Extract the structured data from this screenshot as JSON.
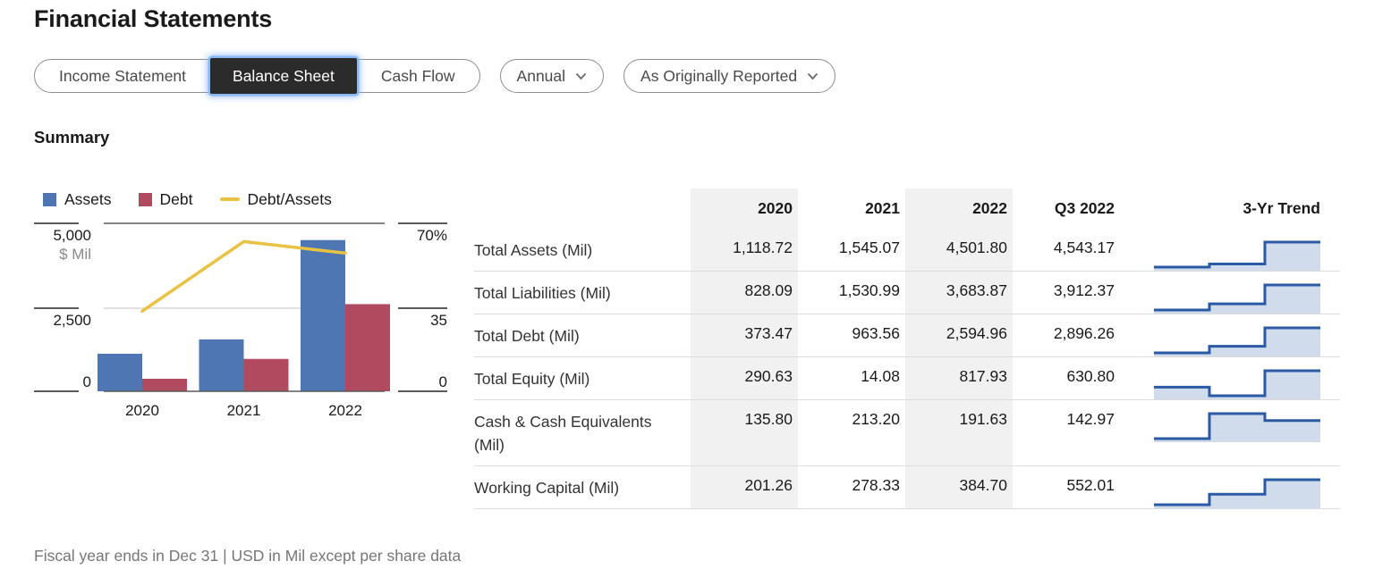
{
  "page": {
    "title": "Financial Statements",
    "summary_heading": "Summary",
    "footnote": "Fiscal year ends in Dec 31 | USD in Mil except per share data"
  },
  "tabs": {
    "items": [
      {
        "label": "Income Statement",
        "selected": false
      },
      {
        "label": "Balance Sheet",
        "selected": true
      },
      {
        "label": "Cash Flow",
        "selected": false
      }
    ]
  },
  "filters": {
    "frequency": {
      "value": "Annual"
    },
    "report_type": {
      "value": "As Originally Reported"
    }
  },
  "colors": {
    "selected_tab_bg": "#2b2b2b",
    "focus_ring": "#8ab9f7",
    "column_shade": "#f1f1f1",
    "trend_line": "#2b5aa5",
    "trend_fill": "#d0dcec"
  },
  "chart_data": {
    "type": "combo-bar-line",
    "categories": [
      "2020",
      "2021",
      "2022"
    ],
    "series": [
      {
        "name": "Assets",
        "type": "bar",
        "color": "#4d76b3",
        "axis": "left",
        "values": [
          1118.72,
          1545.07,
          4501.8
        ]
      },
      {
        "name": "Debt",
        "type": "bar",
        "color": "#b14a5f",
        "axis": "left",
        "values": [
          373.47,
          963.56,
          2594.96
        ]
      },
      {
        "name": "Debt/Assets",
        "type": "line",
        "color": "#eac243",
        "axis": "right",
        "values": [
          33.4,
          62.4,
          57.6
        ]
      }
    ],
    "left_axis": {
      "unit": "$ Mil",
      "ticks": [
        "5,000",
        "2,500",
        "0"
      ],
      "max": 5000,
      "min": 0
    },
    "right_axis": {
      "ticks": [
        "70%",
        "35",
        "0"
      ],
      "max": 70,
      "min": 0
    },
    "grid": "horizontal-mid-only",
    "legend_position": "top-left"
  },
  "table": {
    "columns": [
      "2020",
      "2021",
      "2022",
      "Q3 2022",
      "3-Yr Trend"
    ],
    "shaded_columns": [
      "2020",
      "2022"
    ],
    "rows": [
      {
        "label": "Total Assets (Mil)",
        "values": [
          "1,118.72",
          "1,545.07",
          "4,501.80",
          "4,543.17"
        ],
        "trend": [
          1118.72,
          1545.07,
          4501.8
        ]
      },
      {
        "label": "Total Liabilities (Mil)",
        "values": [
          "828.09",
          "1,530.99",
          "3,683.87",
          "3,912.37"
        ],
        "trend": [
          828.09,
          1530.99,
          3683.87
        ]
      },
      {
        "label": "Total Debt (Mil)",
        "values": [
          "373.47",
          "963.56",
          "2,594.96",
          "2,896.26"
        ],
        "trend": [
          373.47,
          963.56,
          2594.96
        ]
      },
      {
        "label": "Total Equity (Mil)",
        "values": [
          "290.63",
          "14.08",
          "817.93",
          "630.80"
        ],
        "trend": [
          290.63,
          14.08,
          817.93
        ]
      },
      {
        "label": "Cash & Cash Equivalents (Mil)",
        "values": [
          "135.80",
          "213.20",
          "191.63",
          "142.97"
        ],
        "trend": [
          135.8,
          213.2,
          191.63
        ]
      },
      {
        "label": "Working Capital (Mil)",
        "values": [
          "201.26",
          "278.33",
          "384.70",
          "552.01"
        ],
        "trend": [
          201.26,
          278.33,
          384.7
        ]
      }
    ]
  }
}
